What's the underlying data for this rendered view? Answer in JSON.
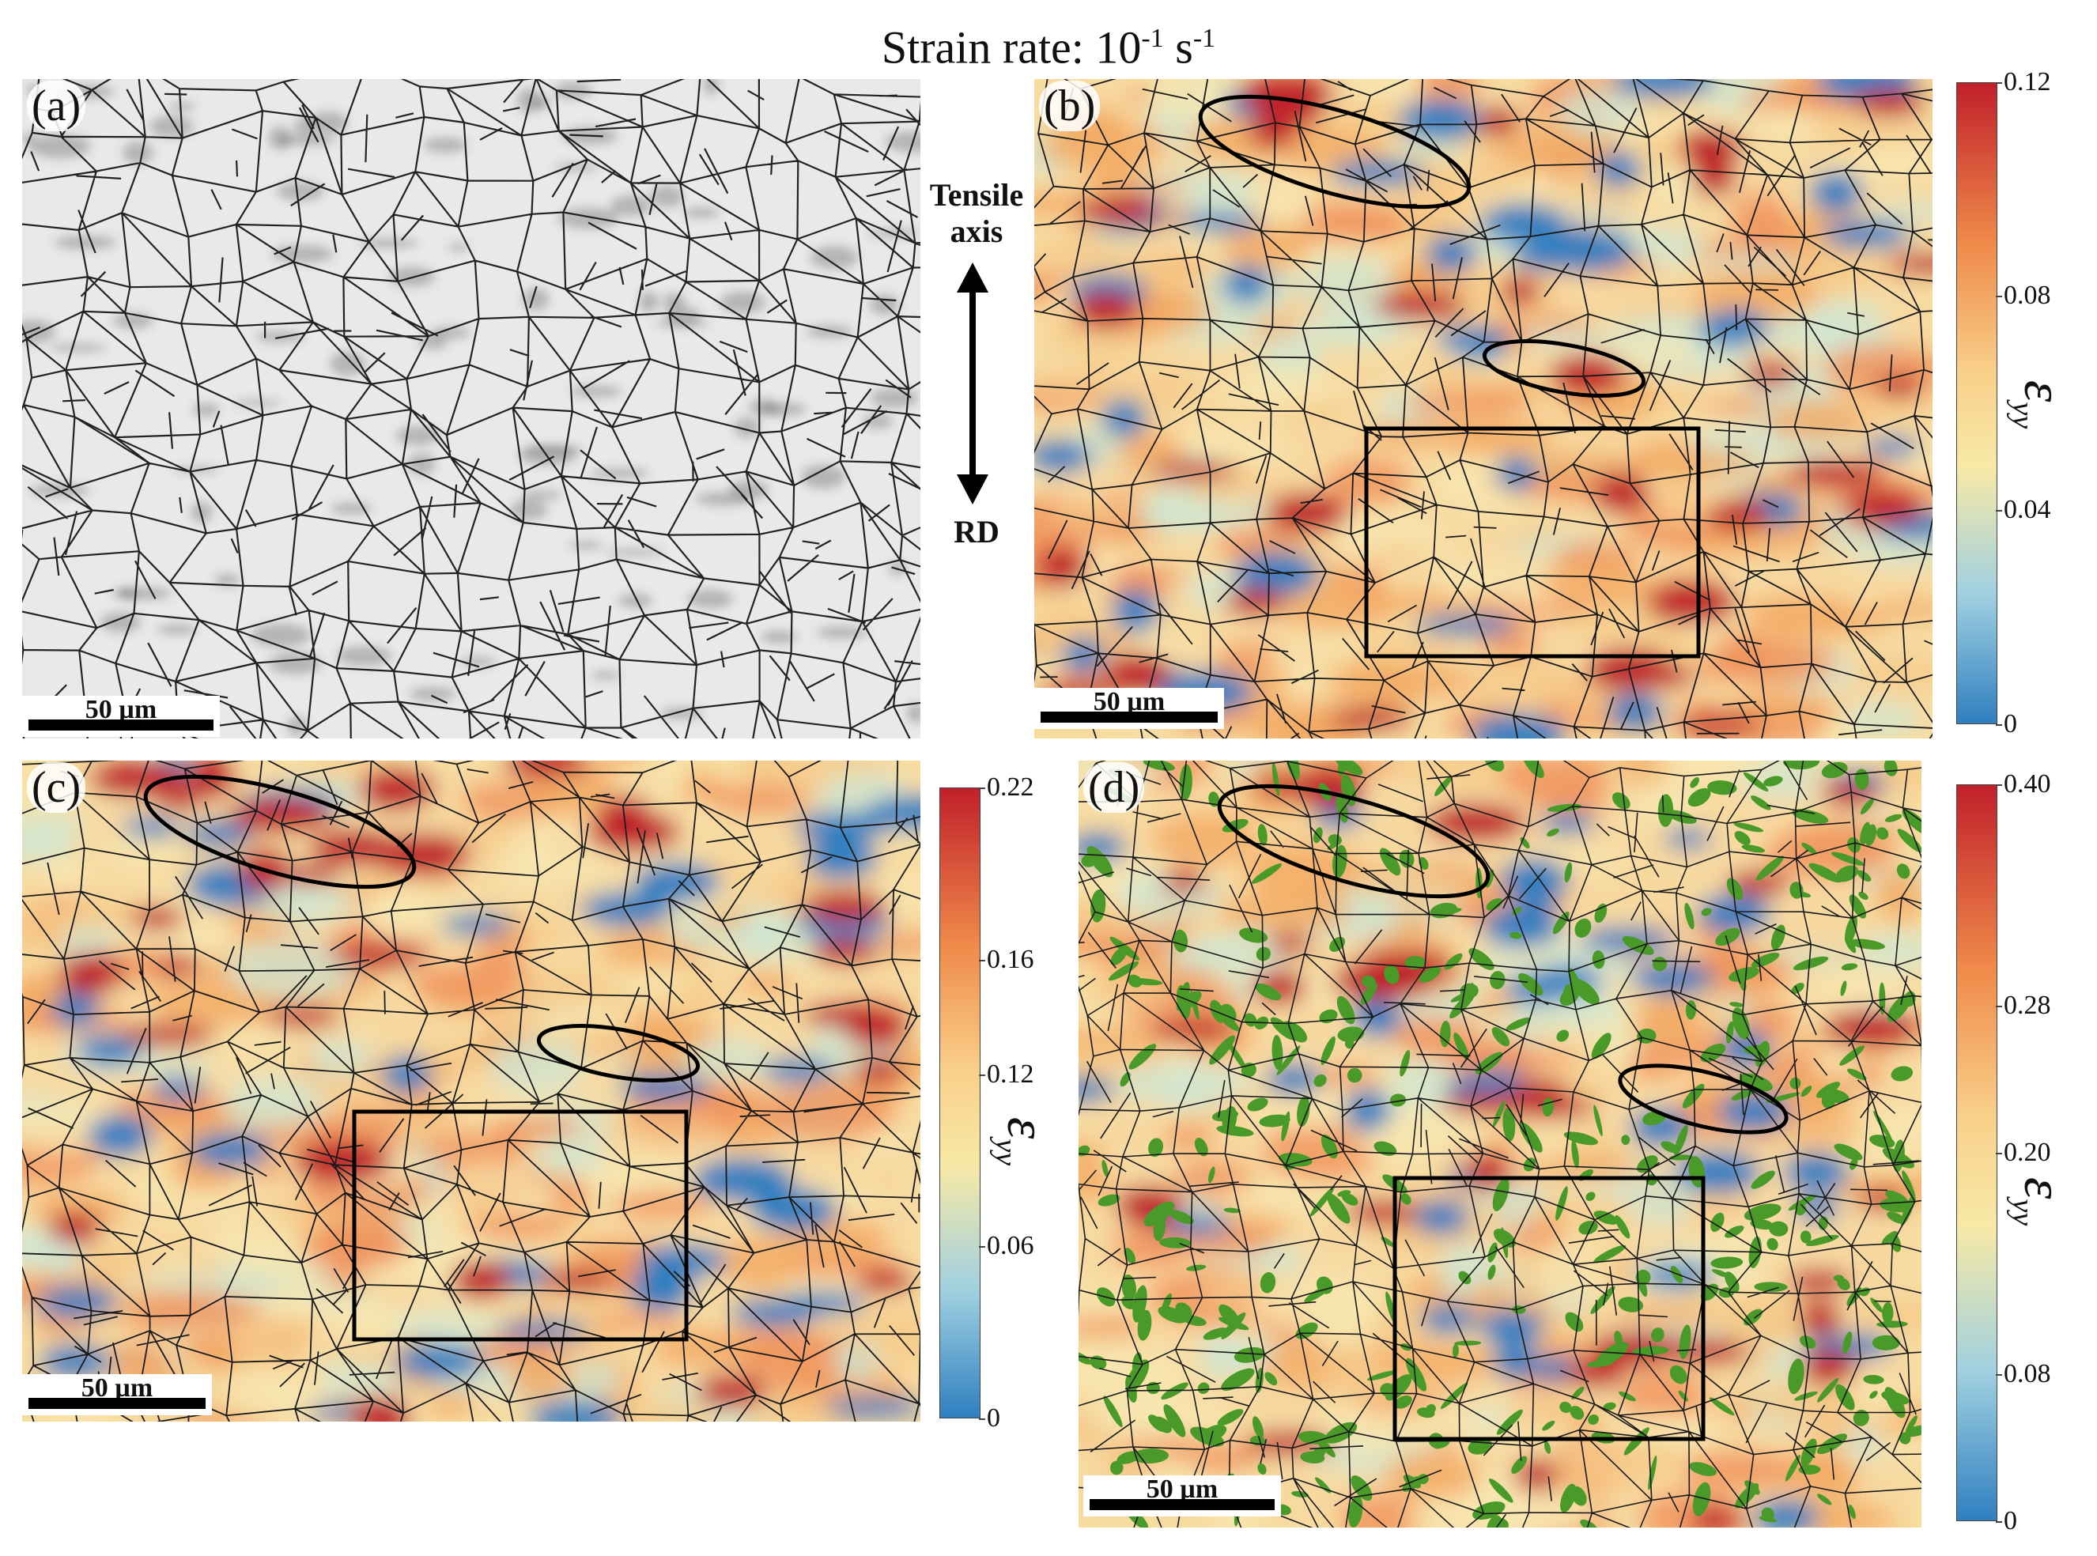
{
  "title": {
    "main": "Strain rate: 10",
    "exp1": "-1",
    "unit": " s",
    "exp2": "-1"
  },
  "direction": {
    "tensile": "Tensile",
    "axis": "axis",
    "rd": "RD"
  },
  "panels": [
    {
      "label": "(a)",
      "scale": "50 µm",
      "type": "grain-map"
    },
    {
      "label": "(b)",
      "scale": "50 µm",
      "type": "strain-map",
      "colorbar": {
        "ticks": [
          "0.12",
          "0.08",
          "0.04",
          "0"
        ],
        "symbol": "ε",
        "sub": "yy"
      }
    },
    {
      "label": "(c)",
      "scale": "50 µm",
      "type": "strain-map",
      "colorbar": {
        "ticks": [
          "0.22",
          "0.16",
          "0.12",
          "0.06",
          "0"
        ],
        "symbol": "ε",
        "sub": "yy"
      }
    },
    {
      "label": "(d)",
      "scale": "50 µm",
      "type": "strain-map-phase",
      "colorbar": {
        "ticks": [
          "0.40",
          "0.28",
          "0.20",
          "0.08",
          "0"
        ],
        "symbol": "ε",
        "sub": "yy"
      }
    }
  ],
  "colors": {
    "high": "#c0202a",
    "mid": "#f7e9a6",
    "low": "#2f7fc0",
    "phase": "#4a9a2a"
  }
}
